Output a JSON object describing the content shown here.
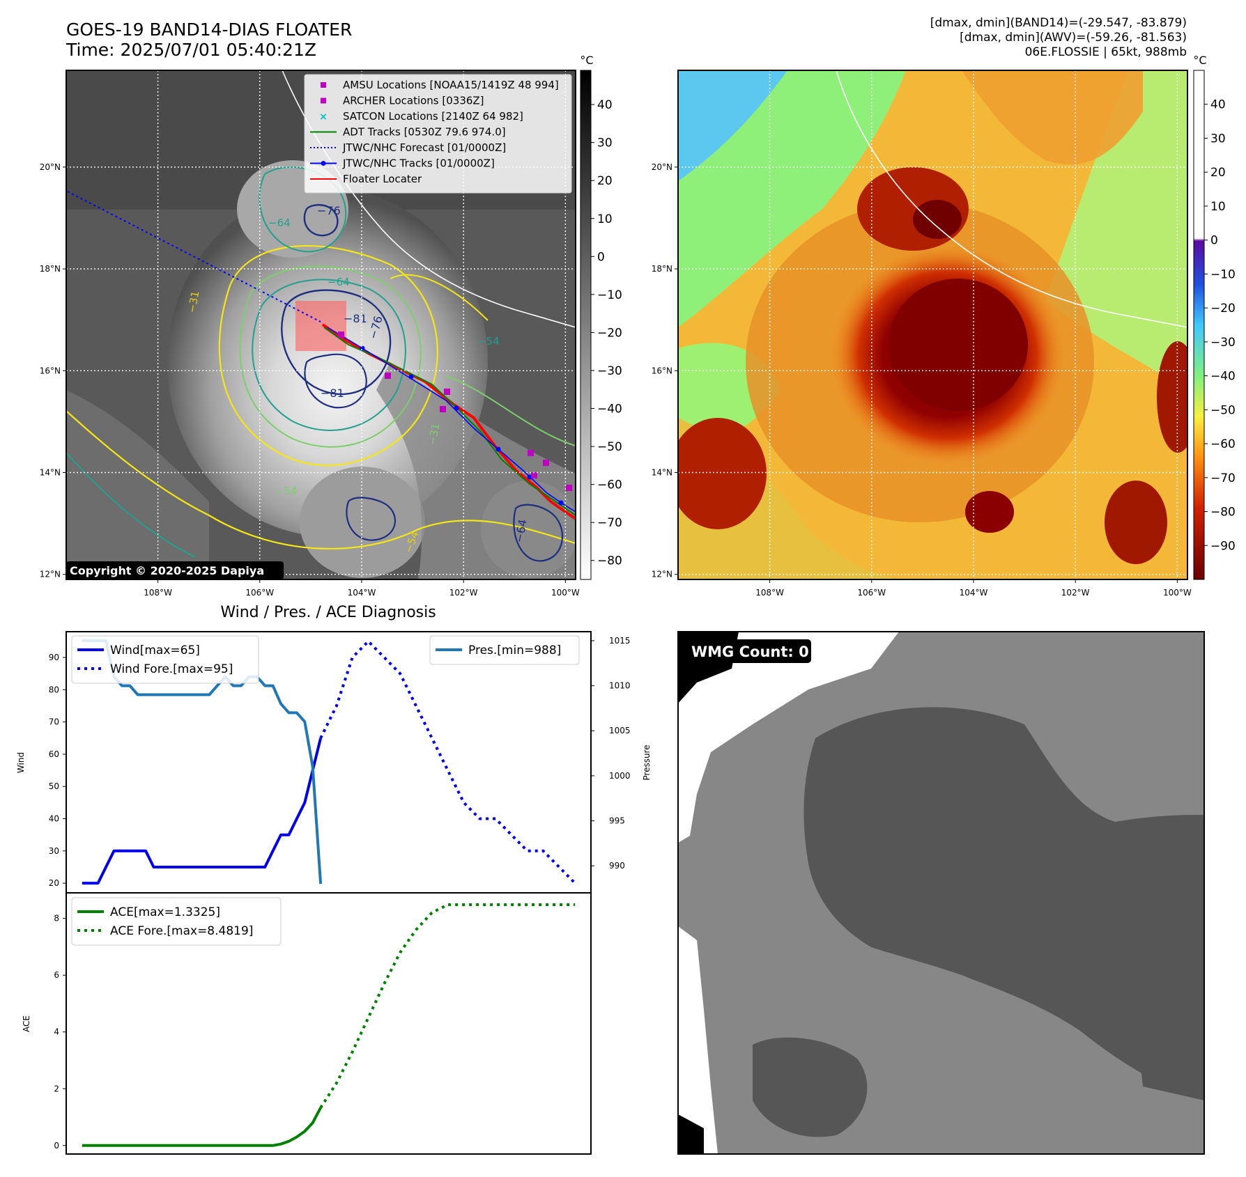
{
  "header": {
    "title_line1": "GOES-19 BAND14-DIAS FLOATER",
    "title_line2": "Time: 2025/07/01 05:40:21Z",
    "info_line1": "[dmax, dmin](BAND14)=(-29.547, -83.879)",
    "info_line2": "[dmax, dmin](AWV)=(-59.26, -81.563)",
    "info_line3": "06E.FLOSSIE | 65kt, 988mb"
  },
  "copyright": "Copyright © 2020-2025 Dapiya",
  "map_axes": {
    "lon_ticks": [
      "108°W",
      "106°W",
      "104°W",
      "102°W",
      "100°W"
    ],
    "lat_ticks": [
      "20°N",
      "18°N",
      "16°N",
      "14°N",
      "12°N"
    ],
    "lon_values": [
      -108,
      -106,
      -104,
      -102,
      -100
    ],
    "lat_values": [
      20,
      18,
      16,
      14,
      12
    ],
    "lon_range": [
      -109.8,
      -99.8
    ],
    "lat_range": [
      11.9,
      21.9
    ]
  },
  "ir_colorbar": {
    "unit": "°C",
    "ticks": [
      "40",
      "30",
      "20",
      "10",
      "0",
      "−10",
      "−20",
      "−30",
      "−40",
      "−50",
      "−60",
      "−70",
      "−80"
    ],
    "values": [
      40,
      30,
      20,
      10,
      0,
      -10,
      -20,
      -30,
      -40,
      -50,
      -60,
      -70,
      -80
    ],
    "range": [
      -85,
      49
    ]
  },
  "wv_colorbar": {
    "unit": "°C",
    "ticks": [
      "40",
      "30",
      "20",
      "10",
      "0",
      "−10",
      "−20",
      "−30",
      "−40",
      "−50",
      "−60",
      "−70",
      "−80",
      "−90"
    ],
    "values": [
      40,
      30,
      20,
      10,
      0,
      -10,
      -20,
      -30,
      -40,
      -50,
      -60,
      -70,
      -80,
      -90
    ],
    "range": [
      -100,
      50
    ]
  },
  "map_legend": [
    {
      "label": "AMSU Locations [NOAA15/1419Z 48 994]",
      "style": "square",
      "color": "#c000c0"
    },
    {
      "label": "ARCHER Locations [0336Z]",
      "style": "square",
      "color": "#c000c0"
    },
    {
      "label": "SATCON Locations [2140Z 64 982]",
      "style": "x",
      "color": "#00bcbc"
    },
    {
      "label": "ADT Tracks [0530Z 79.6 974.0]",
      "style": "line",
      "color": "#008000"
    },
    {
      "label": "JTWC/NHC Forecast [01/0000Z]",
      "style": "dotted",
      "color": "#0000ff"
    },
    {
      "label": "JTWC/NHC Tracks [01/0000Z]",
      "style": "line-dot",
      "color": "#0000ff"
    },
    {
      "label": "Floater Locater",
      "style": "line",
      "color": "#ff0000"
    }
  ],
  "contour_labels": [
    "−81",
    "−76",
    "−81",
    "−76",
    "−64",
    "−64",
    "−64",
    "−54",
    "−54",
    "−31",
    "−31",
    "−54"
  ],
  "diag_title": "Wind / Pres. / ACE Diagnosis",
  "wmg_label": "WMG Count: 0",
  "colors": {
    "wind": "#0000ee",
    "pressure": "#1f77b4",
    "ace": "#008000",
    "amsu": "#c000c0",
    "floater": "#ff0000"
  },
  "chart_data": [
    {
      "type": "line",
      "ylabel": "Wind",
      "ylim": [
        17,
        98
      ],
      "yticks": [
        20,
        30,
        40,
        50,
        60,
        70,
        80,
        90
      ],
      "x": [
        0,
        1,
        2,
        3,
        4,
        5,
        6,
        7,
        8,
        9,
        10,
        11,
        12,
        13,
        14,
        15,
        16,
        17,
        18,
        19,
        20,
        21,
        22,
        23,
        24,
        25,
        26
      ],
      "series": [
        {
          "name": "Wind[max=65]",
          "x": [
            0,
            1,
            2,
            3,
            4,
            5,
            6,
            7,
            8,
            9,
            10,
            11,
            12,
            13,
            14,
            15,
            16,
            17,
            18,
            19,
            20,
            21,
            22,
            23,
            24,
            25,
            26,
            27,
            28,
            29,
            30
          ],
          "values": [
            20,
            20,
            20,
            25,
            30,
            30,
            30,
            30,
            30,
            25,
            25,
            25,
            25,
            25,
            25,
            25,
            25,
            25,
            25,
            25,
            25,
            25,
            25,
            25,
            30,
            35,
            35,
            40,
            45,
            55,
            65
          ],
          "style": "solid"
        },
        {
          "name": "Wind Fore.[max=95]",
          "x": [
            30,
            32,
            34,
            36,
            38,
            40,
            42,
            44,
            46,
            48,
            50,
            52,
            54,
            56,
            58,
            60,
            62
          ],
          "values": [
            65,
            75,
            90,
            95,
            90,
            85,
            75,
            65,
            55,
            45,
            40,
            40,
            35,
            30,
            30,
            25,
            20
          ],
          "style": "dotted"
        },
        {
          "name": "Pres.[min=988]",
          "axis": "right",
          "x": [
            0,
            1,
            2,
            3,
            4,
            5,
            6,
            7,
            8,
            9,
            10,
            11,
            12,
            13,
            14,
            15,
            16,
            17,
            18,
            19,
            20,
            21,
            22,
            23,
            24,
            25,
            26,
            27,
            28,
            29,
            30
          ],
          "values": [
            1015,
            1015,
            1015,
            1015,
            1011,
            1010,
            1010,
            1009,
            1009,
            1009,
            1009,
            1009,
            1009,
            1009,
            1009,
            1009,
            1009,
            1010,
            1011,
            1010,
            1010,
            1011,
            1011,
            1010,
            1010,
            1008,
            1007,
            1007,
            1006,
            1001,
            988
          ],
          "style": "solid"
        }
      ],
      "y2label": "Pressure",
      "y2lim": [
        987,
        1016
      ],
      "y2ticks": [
        990,
        995,
        1000,
        1005,
        1010,
        1015
      ]
    },
    {
      "type": "line",
      "ylabel": "ACE",
      "ylim": [
        -0.3,
        8.9
      ],
      "yticks": [
        0,
        2,
        4,
        6,
        8
      ],
      "series": [
        {
          "name": "ACE[max=1.3325]",
          "x": [
            0,
            5,
            10,
            15,
            20,
            24,
            25,
            26,
            27,
            28,
            29,
            30
          ],
          "values": [
            0,
            0,
            0,
            0,
            0,
            0,
            0.05,
            0.15,
            0.3,
            0.5,
            0.8,
            1.3325
          ],
          "style": "solid"
        },
        {
          "name": "ACE Fore.[max=8.4819]",
          "x": [
            30,
            32,
            34,
            36,
            38,
            40,
            42,
            44,
            46,
            48,
            50,
            52,
            54,
            56,
            58,
            60,
            62
          ],
          "values": [
            1.3325,
            2.2,
            3.3,
            4.5,
            5.7,
            6.8,
            7.6,
            8.2,
            8.4819,
            8.4819,
            8.4819,
            8.4819,
            8.4819,
            8.4819,
            8.4819,
            8.4819,
            8.4819
          ],
          "style": "dotted"
        }
      ]
    }
  ]
}
